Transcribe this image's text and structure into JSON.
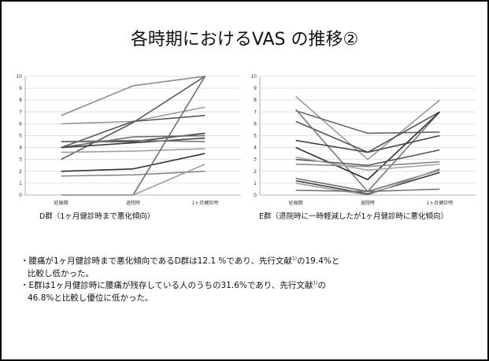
{
  "slide": {
    "title": "各時期におけるVAS の推移②",
    "bullet1_a": "・腰痛が1ヶ月健診時まで悪化傾向であるD群は12.1 %であり、先行文献",
    "bullet1_sup": "1)",
    "bullet1_b": "の19.4%と",
    "bullet1_c": "比較し低かった。",
    "bullet2_a": "・E群は1ヶ月健診時に腰痛が残存している人のうちの31.6%であり、先行文献",
    "bullet2_sup": "1)",
    "bullet2_b": "の",
    "bullet2_c": "46.8%と比較し優位に低かった。"
  },
  "chart_data": [
    {
      "type": "line",
      "caption": "D群（1ヶ月健診時まで悪化傾向）",
      "categories": [
        "妊娠期",
        "退院時",
        "1ヶ月健診時"
      ],
      "ylim": [
        0,
        10
      ],
      "yticks": [
        "0",
        "1",
        "2",
        "3",
        "4",
        "5",
        "6",
        "7",
        "8",
        "9",
        "10"
      ],
      "grid": true,
      "series": [
        {
          "values": [
            6.7,
            9.2,
            10.0
          ],
          "color": "#8c8c8c"
        },
        {
          "values": [
            6.0,
            6.2,
            7.4
          ],
          "color": "#9a9a9a"
        },
        {
          "values": [
            4.0,
            6.2,
            6.7
          ],
          "color": "#555555"
        },
        {
          "values": [
            3.0,
            6.1,
            10.0
          ],
          "color": "#5a5a5a"
        },
        {
          "values": [
            4.5,
            4.5,
            5.2
          ],
          "color": "#444444"
        },
        {
          "values": [
            4.0,
            4.9,
            5.0
          ],
          "color": "#6a6a6a"
        },
        {
          "values": [
            4.0,
            4.4,
            4.8
          ],
          "color": "#3a3a3a"
        },
        {
          "values": [
            4.5,
            4.6,
            4.5
          ],
          "color": "#777777"
        },
        {
          "values": [
            3.6,
            3.7,
            3.9
          ],
          "color": "#9d9d9d"
        },
        {
          "values": [
            2.0,
            2.2,
            3.5
          ],
          "color": "#2e2e2e"
        },
        {
          "values": [
            1.6,
            1.7,
            2.0
          ],
          "color": "#888888"
        },
        {
          "values": [
            0.0,
            0.0,
            10.0
          ],
          "color": "#6e6e6e"
        },
        {
          "values": [
            0.0,
            0.0,
            2.6
          ],
          "color": "#a0a0a0"
        }
      ]
    },
    {
      "type": "line",
      "caption": "E群（退院時に一時軽減したが1ヶ月健診時に悪化傾向）",
      "categories": [
        "妊娠期",
        "退院時",
        "1ヶ月健診時"
      ],
      "ylim": [
        0,
        10
      ],
      "yticks": [
        "0",
        "1",
        "2",
        "3",
        "4",
        "5",
        "6",
        "7",
        "8",
        "9",
        "10"
      ],
      "grid": true,
      "series": [
        {
          "values": [
            8.3,
            3.0,
            8.0
          ],
          "color": "#9a9a9a"
        },
        {
          "values": [
            7.1,
            5.2,
            5.3
          ],
          "color": "#666666"
        },
        {
          "values": [
            6.2,
            3.6,
            7.0
          ],
          "color": "#555555"
        },
        {
          "values": [
            7.2,
            0.3,
            7.0
          ],
          "color": "#7a7a7a"
        },
        {
          "values": [
            4.6,
            3.6,
            5.0
          ],
          "color": "#444444"
        },
        {
          "values": [
            4.0,
            1.3,
            7.0
          ],
          "color": "#2e2e2e"
        },
        {
          "values": [
            3.0,
            2.5,
            3.8
          ],
          "color": "#555555"
        },
        {
          "values": [
            2.6,
            2.4,
            2.8
          ],
          "color": "#888888"
        },
        {
          "values": [
            3.2,
            2.1,
            2.6
          ],
          "color": "#a5a5a5"
        },
        {
          "values": [
            1.4,
            0.3,
            2.1
          ],
          "color": "#6e6e6e"
        },
        {
          "values": [
            1.2,
            0.1,
            1.9
          ],
          "color": "#3d3d3d"
        },
        {
          "values": [
            1.0,
            0.0,
            2.2
          ],
          "color": "#999999"
        },
        {
          "values": [
            0.4,
            0.3,
            0.5
          ],
          "color": "#777777"
        }
      ]
    }
  ]
}
